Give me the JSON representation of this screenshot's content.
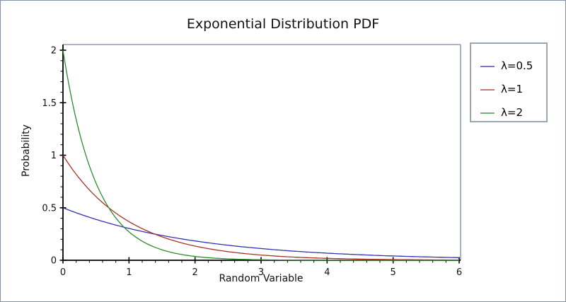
{
  "figure": {
    "title": "Exponential Distribution PDF",
    "xlabel": "Random Variable",
    "ylabel": "Probability"
  },
  "colors": {
    "axis": "#000000",
    "frame": "#8ea0b4",
    "legend_border": "#9aa6b6",
    "outer_border": "#8494a6",
    "series_blue": "#3232b2",
    "series_red": "#a93226",
    "series_green": "#2e8b2e"
  },
  "chart_data": {
    "type": "line",
    "title": "Exponential Distribution PDF",
    "xlabel": "Random Variable",
    "ylabel": "Probability",
    "xlim": [
      0,
      6
    ],
    "ylim": [
      0,
      2
    ],
    "grid": false,
    "legend_position": "outside-right",
    "x_ticks": {
      "values": [
        0,
        1,
        2,
        3,
        4,
        5,
        6
      ],
      "labels": [
        "0",
        "1",
        "2",
        "3",
        "4",
        "5",
        "6"
      ],
      "minor_step": 0.2
    },
    "y_ticks": {
      "values": [
        0,
        0.5,
        1,
        1.5,
        2
      ],
      "labels": [
        "0",
        "0.5",
        "1",
        "1.5",
        "2"
      ],
      "minor_step": 0.1
    },
    "series": [
      {
        "name": "λ=0.5",
        "lambda": 0.5,
        "color": "#3232b2",
        "x": [
          0,
          0.5,
          1,
          1.5,
          2,
          2.5,
          3,
          3.5,
          4,
          4.5,
          5,
          5.5,
          6
        ],
        "y": [
          0.5,
          0.3894,
          0.3033,
          0.2362,
          0.1839,
          0.1433,
          0.1116,
          0.0869,
          0.0677,
          0.0527,
          0.041,
          0.032,
          0.0249
        ]
      },
      {
        "name": "λ=1",
        "lambda": 1,
        "color": "#a93226",
        "x": [
          0,
          0.5,
          1,
          1.5,
          2,
          2.5,
          3,
          3.5,
          4,
          4.5,
          5,
          5.5,
          6
        ],
        "y": [
          1,
          0.6065,
          0.3679,
          0.2231,
          0.1353,
          0.0821,
          0.0498,
          0.0302,
          0.0183,
          0.0111,
          0.0067,
          0.0041,
          0.0025
        ]
      },
      {
        "name": "λ=2",
        "lambda": 2,
        "color": "#2e8b2e",
        "x": [
          0,
          0.5,
          1,
          1.5,
          2,
          2.5,
          3,
          3.5,
          4,
          4.5,
          5,
          5.5,
          6
        ],
        "y": [
          2,
          0.7358,
          0.2707,
          0.0996,
          0.0366,
          0.0135,
          0.005,
          0.0018,
          0.0007,
          0.0002,
          0.0001,
          3e-05,
          1e-05
        ]
      }
    ]
  },
  "legend": {
    "entries": [
      {
        "label": "λ=0.5",
        "color": "#3232b2"
      },
      {
        "label": "λ=1",
        "color": "#a93226"
      },
      {
        "label": "λ=2",
        "color": "#2e8b2e"
      }
    ]
  }
}
